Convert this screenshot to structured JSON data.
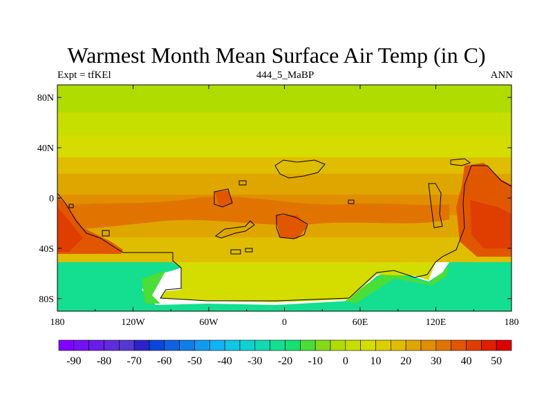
{
  "title": "Warmest Month Mean Surface Air Temp (in C)",
  "left_string": "Expt = tfKEl",
  "center_string": "444_5_MaBP",
  "right_string": "ANN",
  "map": {
    "lon_range": [
      -180,
      180
    ],
    "lat_range": [
      -90,
      90
    ],
    "lon_ticks": [
      {
        "value": -180,
        "label": "180"
      },
      {
        "value": -120,
        "label": "120W"
      },
      {
        "value": -60,
        "label": "60W"
      },
      {
        "value": 0,
        "label": "0"
      },
      {
        "value": 60,
        "label": "60E"
      },
      {
        "value": 120,
        "label": "120E"
      },
      {
        "value": 180,
        "label": "180"
      }
    ],
    "lat_ticks": [
      {
        "value": 80,
        "label": "80N"
      },
      {
        "value": 40,
        "label": "40N"
      },
      {
        "value": 0,
        "label": "0"
      },
      {
        "value": -40,
        "label": "40S"
      },
      {
        "value": -80,
        "label": "80S"
      }
    ]
  },
  "colorbar": {
    "colors": [
      "#7f00ff",
      "#7411f2",
      "#6a1de8",
      "#5f2cdd",
      "#5438d2",
      "#2c23cc",
      "#0a46d9",
      "#0e62e1",
      "#0f7de8",
      "#0f9bf0",
      "#10b3f3",
      "#11c6e6",
      "#11d1d0",
      "#12d9b3",
      "#14de8f",
      "#15e070",
      "#4bdd38",
      "#86d916",
      "#b0dc00",
      "#c6de00",
      "#d4dc00",
      "#dbcf00",
      "#dfbd00",
      "#e0a600",
      "#e18e00",
      "#e17400",
      "#e15700",
      "#e03d00",
      "#df1f00",
      "#dc0000"
    ],
    "labels": [
      "-90",
      "-80",
      "-70",
      "-60",
      "-50",
      "-40",
      "-30",
      "-20",
      "-10",
      "0",
      "10",
      "20",
      "30",
      "40",
      "50"
    ]
  }
}
